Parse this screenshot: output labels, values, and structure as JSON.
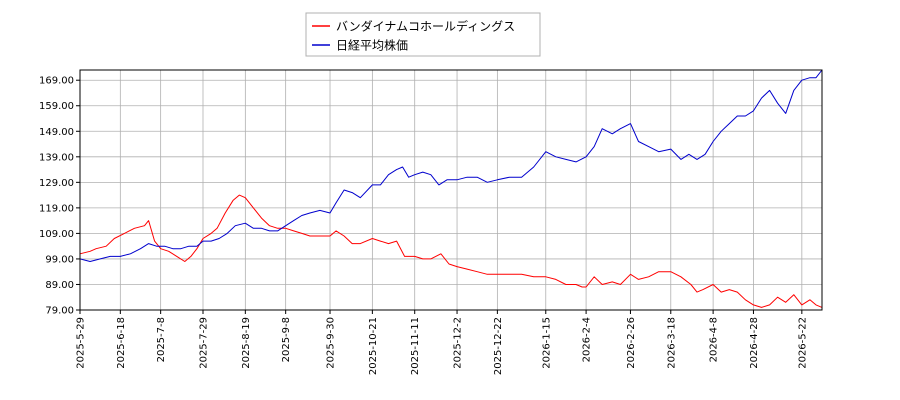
{
  "chart_data": {
    "type": "line",
    "ylim": [
      79,
      173
    ],
    "yticks": [
      79,
      89,
      99,
      109,
      119,
      129,
      139,
      149,
      159,
      169
    ],
    "ytick_labels": [
      "79.00",
      "89.00",
      "99.00",
      "109.00",
      "119.00",
      "129.00",
      "139.00",
      "149.00",
      "159.00",
      "169.00"
    ],
    "xlim": [
      "2025-05-29",
      "2026-06-01"
    ],
    "xtick_labels": [
      "2025-5-29",
      "2025-6-18",
      "2025-7-8",
      "2025-7-29",
      "2025-8-19",
      "2025-9-8",
      "2025-9-30",
      "2025-10-21",
      "2025-11-11",
      "2025-12-2",
      "2025-12-22",
      "2026-1-15",
      "2026-2-4",
      "2026-2-26",
      "2026-3-18",
      "2026-4-8",
      "2026-4-28",
      "2026-5-22"
    ],
    "xtick_dates": [
      "2025-05-29",
      "2025-06-18",
      "2025-07-08",
      "2025-07-29",
      "2025-08-19",
      "2025-09-08",
      "2025-09-30",
      "2025-10-21",
      "2025-11-11",
      "2025-12-02",
      "2025-12-22",
      "2026-01-15",
      "2026-02-04",
      "2026-02-26",
      "2026-03-18",
      "2026-04-08",
      "2026-04-28",
      "2026-05-22"
    ],
    "grid": true,
    "legend_position": "top-center",
    "series": [
      {
        "name": "バンダイナムコホールディングス",
        "color": "#ff0000",
        "points": [
          [
            "2025-05-29",
            101
          ],
          [
            "2025-06-03",
            102
          ],
          [
            "2025-06-06",
            103
          ],
          [
            "2025-06-11",
            104
          ],
          [
            "2025-06-15",
            107
          ],
          [
            "2025-06-20",
            109
          ],
          [
            "2025-06-25",
            111
          ],
          [
            "2025-06-30",
            112
          ],
          [
            "2025-07-02",
            114
          ],
          [
            "2025-07-05",
            106
          ],
          [
            "2025-07-08",
            103
          ],
          [
            "2025-07-12",
            102
          ],
          [
            "2025-07-16",
            100
          ],
          [
            "2025-07-20",
            98
          ],
          [
            "2025-07-23",
            100
          ],
          [
            "2025-07-26",
            103
          ],
          [
            "2025-07-29",
            107
          ],
          [
            "2025-08-02",
            109
          ],
          [
            "2025-08-05",
            111
          ],
          [
            "2025-08-09",
            117
          ],
          [
            "2025-08-13",
            122
          ],
          [
            "2025-08-16",
            124
          ],
          [
            "2025-08-19",
            123
          ],
          [
            "2025-08-23",
            119
          ],
          [
            "2025-08-27",
            115
          ],
          [
            "2025-08-31",
            112
          ],
          [
            "2025-09-04",
            111
          ],
          [
            "2025-09-08",
            111
          ],
          [
            "2025-09-12",
            110
          ],
          [
            "2025-09-16",
            109
          ],
          [
            "2025-09-20",
            108
          ],
          [
            "2025-09-25",
            108
          ],
          [
            "2025-09-30",
            108
          ],
          [
            "2025-10-03",
            110
          ],
          [
            "2025-10-07",
            108
          ],
          [
            "2025-10-11",
            105
          ],
          [
            "2025-10-15",
            105
          ],
          [
            "2025-10-21",
            107
          ],
          [
            "2025-10-25",
            106
          ],
          [
            "2025-10-29",
            105
          ],
          [
            "2025-11-02",
            106
          ],
          [
            "2025-11-06",
            100
          ],
          [
            "2025-11-11",
            100
          ],
          [
            "2025-11-15",
            99
          ],
          [
            "2025-11-19",
            99
          ],
          [
            "2025-11-24",
            101
          ],
          [
            "2025-11-28",
            97
          ],
          [
            "2025-12-02",
            96
          ],
          [
            "2025-12-07",
            95
          ],
          [
            "2025-12-12",
            94
          ],
          [
            "2025-12-17",
            93
          ],
          [
            "2025-12-22",
            93
          ],
          [
            "2025-12-28",
            93
          ],
          [
            "2026-01-03",
            93
          ],
          [
            "2026-01-09",
            92
          ],
          [
            "2026-01-15",
            92
          ],
          [
            "2026-01-20",
            91
          ],
          [
            "2026-01-25",
            89
          ],
          [
            "2026-01-30",
            89
          ],
          [
            "2026-02-02",
            88
          ],
          [
            "2026-02-04",
            88
          ],
          [
            "2026-02-08",
            92
          ],
          [
            "2026-02-12",
            89
          ],
          [
            "2026-02-17",
            90
          ],
          [
            "2026-02-21",
            89
          ],
          [
            "2026-02-26",
            93
          ],
          [
            "2026-03-02",
            91
          ],
          [
            "2026-03-07",
            92
          ],
          [
            "2026-03-12",
            94
          ],
          [
            "2026-03-18",
            94
          ],
          [
            "2026-03-23",
            92
          ],
          [
            "2026-03-28",
            89
          ],
          [
            "2026-03-31",
            86
          ],
          [
            "2026-04-03",
            87
          ],
          [
            "2026-04-08",
            89
          ],
          [
            "2026-04-12",
            86
          ],
          [
            "2026-04-16",
            87
          ],
          [
            "2026-04-20",
            86
          ],
          [
            "2026-04-24",
            83
          ],
          [
            "2026-04-28",
            81
          ],
          [
            "2026-05-02",
            80
          ],
          [
            "2026-05-06",
            81
          ],
          [
            "2026-05-10",
            84
          ],
          [
            "2026-05-14",
            82
          ],
          [
            "2026-05-18",
            85
          ],
          [
            "2026-05-22",
            81
          ],
          [
            "2026-05-26",
            83
          ],
          [
            "2026-05-29",
            81
          ],
          [
            "2026-06-01",
            80
          ]
        ]
      },
      {
        "name": "日経平均株価",
        "color": "#0000cd",
        "points": [
          [
            "2025-05-29",
            99
          ],
          [
            "2025-06-03",
            98
          ],
          [
            "2025-06-08",
            99
          ],
          [
            "2025-06-13",
            100
          ],
          [
            "2025-06-18",
            100
          ],
          [
            "2025-06-23",
            101
          ],
          [
            "2025-06-28",
            103
          ],
          [
            "2025-07-02",
            105
          ],
          [
            "2025-07-06",
            104
          ],
          [
            "2025-07-10",
            104
          ],
          [
            "2025-07-14",
            103
          ],
          [
            "2025-07-18",
            103
          ],
          [
            "2025-07-22",
            104
          ],
          [
            "2025-07-26",
            104
          ],
          [
            "2025-07-29",
            106
          ],
          [
            "2025-08-02",
            106
          ],
          [
            "2025-08-06",
            107
          ],
          [
            "2025-08-10",
            109
          ],
          [
            "2025-08-14",
            112
          ],
          [
            "2025-08-19",
            113
          ],
          [
            "2025-08-23",
            111
          ],
          [
            "2025-08-27",
            111
          ],
          [
            "2025-08-31",
            110
          ],
          [
            "2025-09-04",
            110
          ],
          [
            "2025-09-08",
            112
          ],
          [
            "2025-09-12",
            114
          ],
          [
            "2025-09-16",
            116
          ],
          [
            "2025-09-20",
            117
          ],
          [
            "2025-09-25",
            118
          ],
          [
            "2025-09-30",
            117
          ],
          [
            "2025-10-03",
            121
          ],
          [
            "2025-10-07",
            126
          ],
          [
            "2025-10-11",
            125
          ],
          [
            "2025-10-15",
            123
          ],
          [
            "2025-10-21",
            128
          ],
          [
            "2025-10-25",
            128
          ],
          [
            "2025-10-29",
            132
          ],
          [
            "2025-11-02",
            134
          ],
          [
            "2025-11-05",
            135
          ],
          [
            "2025-11-08",
            131
          ],
          [
            "2025-11-11",
            132
          ],
          [
            "2025-11-15",
            133
          ],
          [
            "2025-11-19",
            132
          ],
          [
            "2025-11-23",
            128
          ],
          [
            "2025-11-27",
            130
          ],
          [
            "2025-12-02",
            130
          ],
          [
            "2025-12-07",
            131
          ],
          [
            "2025-12-12",
            131
          ],
          [
            "2025-12-17",
            129
          ],
          [
            "2025-12-22",
            130
          ],
          [
            "2025-12-28",
            131
          ],
          [
            "2026-01-03",
            131
          ],
          [
            "2026-01-09",
            135
          ],
          [
            "2026-01-15",
            141
          ],
          [
            "2026-01-20",
            139
          ],
          [
            "2026-01-25",
            138
          ],
          [
            "2026-01-30",
            137
          ],
          [
            "2026-02-04",
            139
          ],
          [
            "2026-02-08",
            143
          ],
          [
            "2026-02-12",
            150
          ],
          [
            "2026-02-17",
            148
          ],
          [
            "2026-02-21",
            150
          ],
          [
            "2026-02-26",
            152
          ],
          [
            "2026-03-02",
            145
          ],
          [
            "2026-03-07",
            143
          ],
          [
            "2026-03-12",
            141
          ],
          [
            "2026-03-18",
            142
          ],
          [
            "2026-03-23",
            138
          ],
          [
            "2026-03-27",
            140
          ],
          [
            "2026-03-31",
            138
          ],
          [
            "2026-04-04",
            140
          ],
          [
            "2026-04-08",
            145
          ],
          [
            "2026-04-12",
            149
          ],
          [
            "2026-04-16",
            152
          ],
          [
            "2026-04-20",
            155
          ],
          [
            "2026-04-24",
            155
          ],
          [
            "2026-04-28",
            157
          ],
          [
            "2026-05-02",
            162
          ],
          [
            "2026-05-06",
            165
          ],
          [
            "2026-05-10",
            160
          ],
          [
            "2026-05-14",
            156
          ],
          [
            "2026-05-18",
            165
          ],
          [
            "2026-05-22",
            169
          ],
          [
            "2026-05-26",
            170
          ],
          [
            "2026-05-29",
            170
          ],
          [
            "2026-06-01",
            173
          ]
        ]
      }
    ]
  }
}
